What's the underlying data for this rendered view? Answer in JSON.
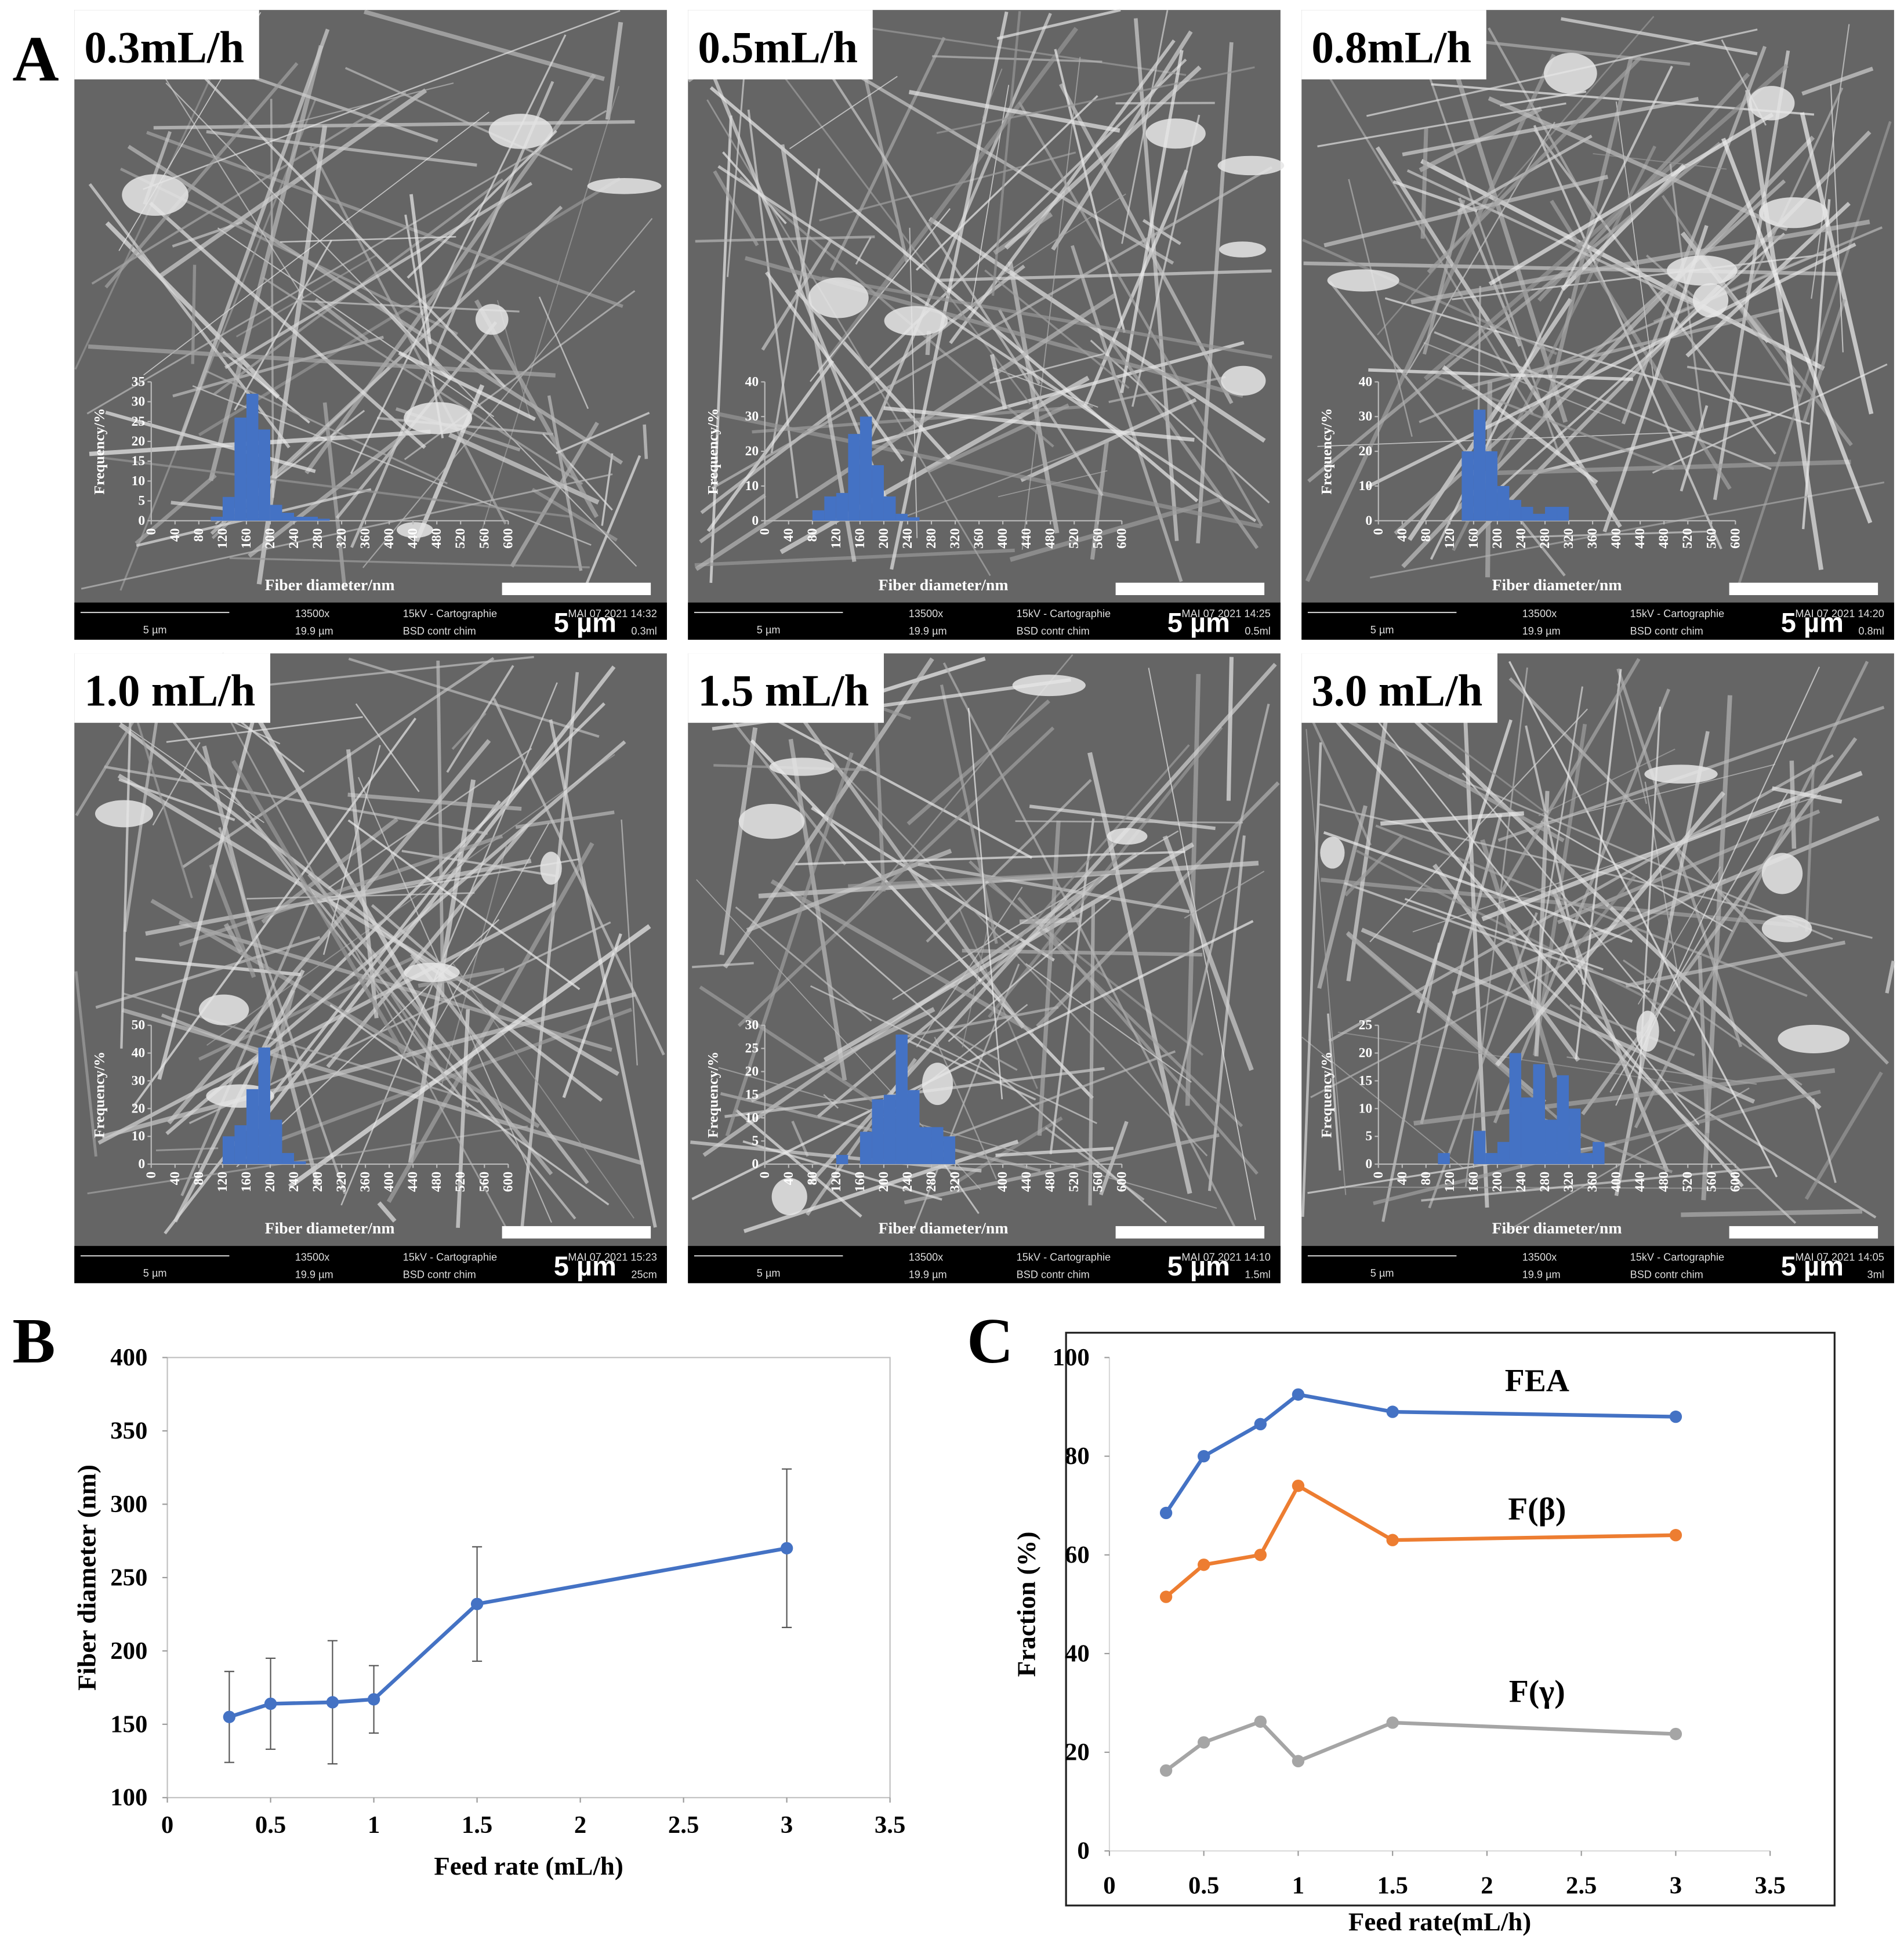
{
  "panel_letters": [
    "A",
    "B",
    "C"
  ],
  "panels": [
    {
      "label": "0.3mL/h",
      "scale_bar": "5 µm",
      "info": {
        "scale": "5 µm",
        "magnification": "13500x",
        "field": "19.9 µm",
        "mode": "15kV - Cartographie",
        "detector": "BSD contr chim",
        "date": "MAI 07 2021 14:32",
        "sample": "0.3ml"
      }
    },
    {
      "label": "0.5mL/h",
      "scale_bar": "5 µm",
      "info": {
        "scale": "5 µm",
        "magnification": "13500x",
        "field": "19.9 µm",
        "mode": "15kV - Cartographie",
        "detector": "BSD contr chim",
        "date": "MAI 07 2021 14:25",
        "sample": "0.5ml"
      }
    },
    {
      "label": "0.8mL/h",
      "scale_bar": "5 µm",
      "info": {
        "scale": "5 µm",
        "magnification": "13500x",
        "field": "19.9 µm",
        "mode": "15kV - Cartographie",
        "detector": "BSD contr chim",
        "date": "MAI 07 2021 14:20",
        "sample": "0.8ml"
      }
    },
    {
      "label": "1.0 mL/h",
      "scale_bar": "5 µm",
      "info": {
        "scale": "5 µm",
        "magnification": "13500x",
        "field": "19.9 µm",
        "mode": "15kV - Cartographie",
        "detector": "BSD contr chim",
        "date": "MAI 07 2021 15:23",
        "sample": "25cm"
      }
    },
    {
      "label": "1.5 mL/h",
      "scale_bar": "5 µm",
      "info": {
        "scale": "5 µm",
        "magnification": "13500x",
        "field": "19.9 µm",
        "mode": "15kV - Cartographie",
        "detector": "BSD contr chim",
        "date": "MAI 07 2021 14:10",
        "sample": "1.5ml"
      }
    },
    {
      "label": "3.0 mL/h",
      "scale_bar": "5 µm",
      "info": {
        "scale": "5 µm",
        "magnification": "13500x",
        "field": "19.9 µm",
        "mode": "15kV - Cartographie",
        "detector": "BSD contr chim",
        "date": "MAI 07 2021 14:05",
        "sample": "3ml"
      }
    }
  ],
  "chart_data": [
    {
      "type": "histogram",
      "xlabel": "Fiber diameter/nm",
      "ylabel": "Frequency/%",
      "color": "#4472c4",
      "bins": [
        100,
        120,
        140,
        160,
        180,
        200,
        220,
        240,
        260,
        280,
        300
      ],
      "values": [
        1,
        6,
        26,
        32,
        23,
        4,
        2,
        1,
        1,
        0.5
      ],
      "xlim": [
        0,
        600
      ],
      "xticks": [
        0,
        40,
        80,
        120,
        160,
        200,
        240,
        280,
        320,
        360,
        400,
        440,
        480,
        520,
        560,
        600
      ],
      "ylim": [
        0,
        35
      ],
      "yticks": [
        0,
        5,
        10,
        15,
        20,
        25,
        30,
        35
      ]
    },
    {
      "type": "histogram",
      "xlabel": "Fiber diameter/nm",
      "ylabel": "Frequency/%",
      "color": "#4472c4",
      "bins": [
        80,
        100,
        120,
        140,
        160,
        180,
        200,
        220,
        240,
        260
      ],
      "values": [
        3,
        7,
        8,
        25,
        30,
        16,
        7,
        2,
        1
      ],
      "xlim": [
        0,
        600
      ],
      "xticks": [
        0,
        40,
        80,
        120,
        160,
        200,
        240,
        280,
        320,
        360,
        400,
        440,
        480,
        520,
        560,
        600
      ],
      "ylim": [
        0,
        40
      ],
      "yticks": [
        0,
        10,
        20,
        30,
        40
      ]
    },
    {
      "type": "histogram",
      "xlabel": "Fiber diameter/nm",
      "ylabel": "Frequency/%",
      "color": "#4472c4",
      "bins": [
        140,
        160,
        180,
        200,
        220,
        240,
        260,
        280,
        300,
        320
      ],
      "values": [
        20,
        32,
        20,
        10,
        6,
        4,
        2,
        4,
        4
      ],
      "xlim": [
        0,
        600
      ],
      "xticks": [
        0,
        40,
        80,
        120,
        160,
        200,
        240,
        280,
        320,
        360,
        400,
        440,
        480,
        520,
        560,
        600
      ],
      "ylim": [
        0,
        40
      ],
      "yticks": [
        0,
        10,
        20,
        30,
        40
      ]
    },
    {
      "type": "histogram",
      "xlabel": "Fiber diameter/nm",
      "ylabel": "Frequency/%",
      "color": "#4472c4",
      "bins": [
        120,
        140,
        160,
        180,
        200,
        220,
        240,
        260
      ],
      "values": [
        10,
        14,
        27,
        42,
        16,
        4,
        1
      ],
      "xlim": [
        0,
        600
      ],
      "xticks": [
        0,
        40,
        80,
        120,
        160,
        200,
        240,
        280,
        320,
        360,
        400,
        440,
        480,
        520,
        560,
        600
      ],
      "ylim": [
        0,
        50
      ],
      "yticks": [
        0,
        10,
        20,
        30,
        40,
        50
      ]
    },
    {
      "type": "histogram",
      "xlabel": "Fiber diameter/nm",
      "ylabel": "Frequency/%",
      "color": "#4472c4",
      "bins": [
        120,
        140,
        160,
        180,
        200,
        220,
        240,
        260,
        280,
        300,
        320
      ],
      "values": [
        2,
        0,
        7,
        14,
        15,
        28,
        16,
        8,
        8,
        6
      ],
      "xlim": [
        0,
        600
      ],
      "xticks": [
        0,
        40,
        80,
        120,
        160,
        200,
        240,
        280,
        320,
        400,
        440,
        480,
        520,
        560,
        600
      ],
      "ylim": [
        0,
        30
      ],
      "yticks": [
        0,
        5,
        10,
        15,
        20,
        25,
        30
      ]
    },
    {
      "type": "histogram",
      "xlabel": "Fiber diameter/nm",
      "ylabel": "Frequency/%",
      "color": "#4472c4",
      "bins": [
        100,
        120,
        140,
        160,
        180,
        200,
        220,
        240,
        260,
        280,
        300,
        320,
        340,
        360,
        380
      ],
      "values": [
        2,
        0,
        0,
        6,
        2,
        4,
        20,
        12,
        18,
        8,
        16,
        10,
        2,
        4
      ],
      "xlim": [
        0,
        600
      ],
      "xticks": [
        0,
        40,
        80,
        120,
        160,
        200,
        240,
        280,
        320,
        360,
        400,
        440,
        480,
        520,
        560,
        600
      ],
      "ylim": [
        0,
        25
      ],
      "yticks": [
        0,
        5,
        10,
        15,
        20,
        25
      ]
    },
    {
      "type": "line",
      "xlabel": "Feed rate (mL/h)",
      "ylabel": "Fiber diameter (nm)",
      "x": [
        0.3,
        0.5,
        0.8,
        1,
        1.5,
        3
      ],
      "series": [
        {
          "color": "#4472c4",
          "values": [
            155,
            164,
            165,
            167,
            232,
            270
          ],
          "errors": [
            31,
            31,
            42,
            23,
            39,
            54
          ]
        }
      ],
      "xlim": [
        0,
        3.5
      ],
      "xticks": [
        0,
        0.5,
        1,
        1.5,
        2,
        2.5,
        3,
        3.5
      ],
      "ylim": [
        100,
        400
      ],
      "yticks": [
        100,
        150,
        200,
        250,
        300,
        350,
        400
      ]
    },
    {
      "type": "line",
      "xlabel": "Feed rate(mL/h)",
      "ylabel": "Fraction (%)",
      "x": [
        0.3,
        0.5,
        0.8,
        1,
        1.5,
        3
      ],
      "series": [
        {
          "name": "FEA",
          "color": "#4472c4",
          "values": [
            68.5,
            80,
            86.5,
            92.5,
            89,
            88
          ]
        },
        {
          "name": "F(β)",
          "color": "#ed7d31",
          "values": [
            51.5,
            58,
            60,
            74,
            63,
            64
          ]
        },
        {
          "name": "F(γ)",
          "color": "#a5a5a5",
          "values": [
            16.3,
            22,
            26.2,
            18.2,
            26,
            23.7
          ]
        }
      ],
      "xlim": [
        0,
        3.5
      ],
      "xticks": [
        0,
        0.5,
        1,
        1.5,
        2,
        2.5,
        3,
        3.5
      ],
      "ylim": [
        0,
        100
      ],
      "yticks": [
        0,
        20,
        40,
        60,
        80,
        100
      ]
    }
  ]
}
